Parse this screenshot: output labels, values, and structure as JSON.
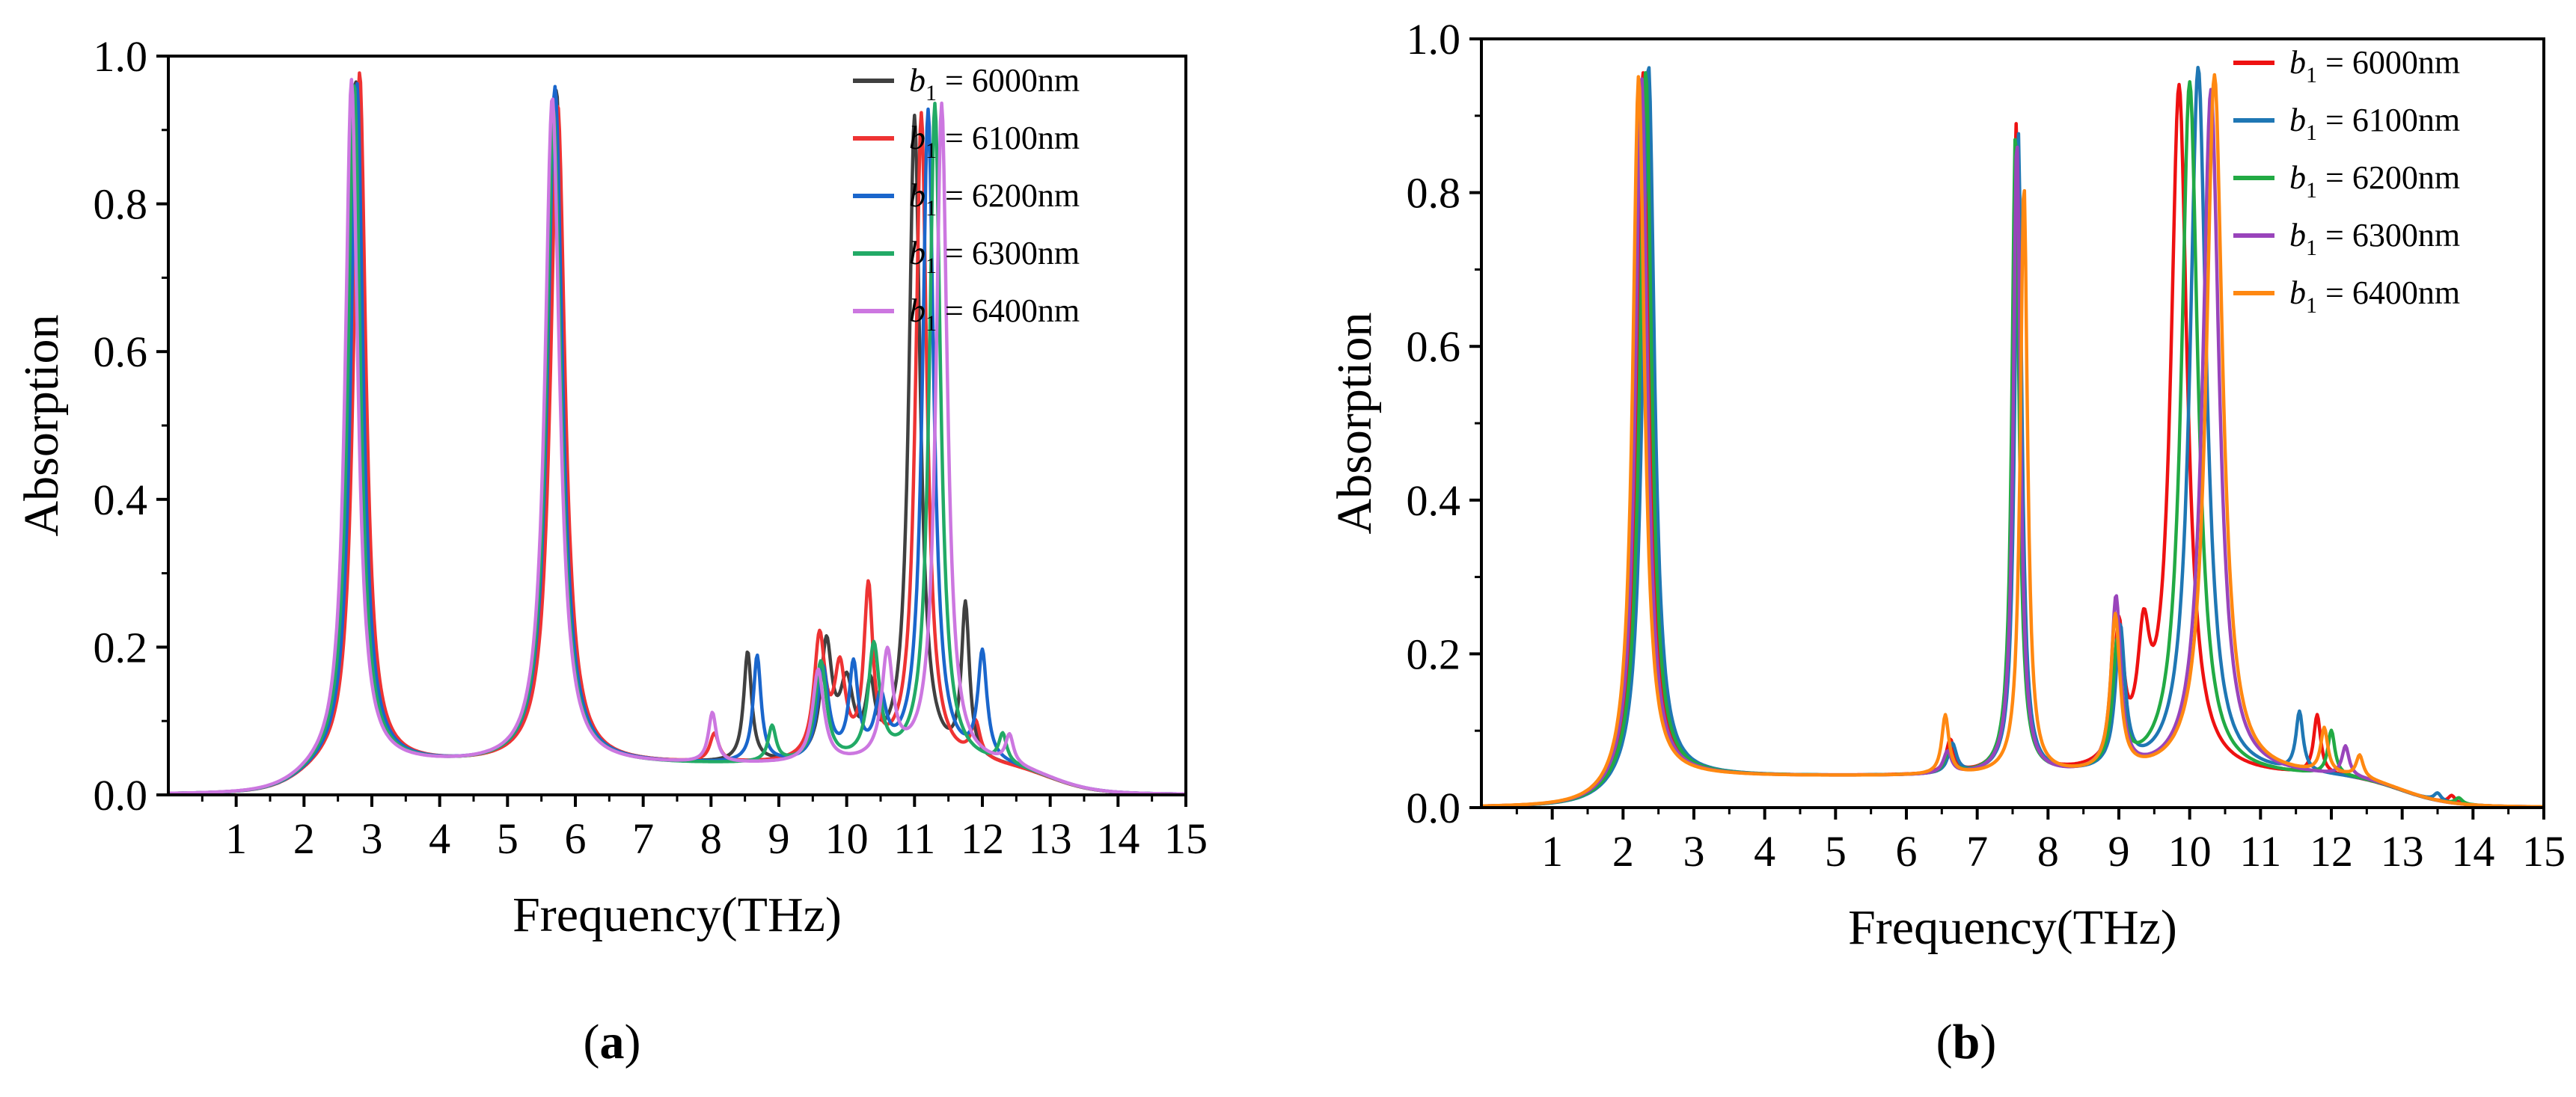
{
  "chart_data": [
    {
      "type": "line",
      "panel_label": "a",
      "xlabel": "Frequency(THz)",
      "ylabel": "Absorption",
      "xlim": [
        0,
        15
      ],
      "ylim": [
        0,
        1.0
      ],
      "x_ticks": [
        1,
        2,
        3,
        4,
        5,
        6,
        7,
        8,
        9,
        10,
        11,
        12,
        13,
        14,
        15
      ],
      "y_ticks": [
        0.0,
        0.2,
        0.4,
        0.6,
        0.8,
        1.0
      ],
      "y_tick_labels": [
        "0.0",
        "0.2",
        "0.4",
        "0.6",
        "0.8",
        "1.0"
      ],
      "legend_position": "top-right",
      "series": [
        {
          "name": "b1 = 6000nm",
          "symbol": "b",
          "subscript": "1",
          "value_text": " = 6000nm",
          "color": "#404040",
          "peaks": [
            {
              "f": 2.76,
              "a": 0.965,
              "w": 0.11
            },
            {
              "f": 5.72,
              "a": 0.95,
              "w": 0.13
            },
            {
              "f": 8.54,
              "a": 0.155,
              "w": 0.07
            },
            {
              "f": 9.7,
              "a": 0.16,
              "w": 0.1
            },
            {
              "f": 10.0,
              "a": 0.1,
              "w": 0.12
            },
            {
              "f": 10.35,
              "a": 0.09,
              "w": 0.08
            },
            {
              "f": 11.0,
              "a": 0.91,
              "w": 0.1
            },
            {
              "f": 11.75,
              "a": 0.215,
              "w": 0.07
            }
          ]
        },
        {
          "name": "b1 = 6100nm",
          "symbol": "b",
          "subscript": "1",
          "value_text": " = 6100nm",
          "color": "#ee3333",
          "peaks": [
            {
              "f": 2.82,
              "a": 0.975,
              "w": 0.11
            },
            {
              "f": 5.74,
              "a": 0.93,
              "w": 0.13
            },
            {
              "f": 8.05,
              "a": 0.04,
              "w": 0.08
            },
            {
              "f": 9.6,
              "a": 0.17,
              "w": 0.1
            },
            {
              "f": 9.9,
              "a": 0.12,
              "w": 0.1
            },
            {
              "f": 10.32,
              "a": 0.235,
              "w": 0.08
            },
            {
              "f": 11.1,
              "a": 0.915,
              "w": 0.1
            },
            {
              "f": 11.9,
              "a": 0.05,
              "w": 0.08
            }
          ]
        },
        {
          "name": "b1 = 6200nm",
          "symbol": "b",
          "subscript": "1",
          "value_text": " = 6200nm",
          "color": "#1a66cc",
          "peaks": [
            {
              "f": 2.78,
              "a": 0.96,
              "w": 0.11
            },
            {
              "f": 5.7,
              "a": 0.955,
              "w": 0.13
            },
            {
              "f": 8.68,
              "a": 0.15,
              "w": 0.07
            },
            {
              "f": 9.65,
              "a": 0.13,
              "w": 0.1
            },
            {
              "f": 10.1,
              "a": 0.13,
              "w": 0.08
            },
            {
              "f": 10.5,
              "a": 0.08,
              "w": 0.1
            },
            {
              "f": 11.2,
              "a": 0.92,
              "w": 0.1
            },
            {
              "f": 12.0,
              "a": 0.15,
              "w": 0.08
            }
          ]
        },
        {
          "name": "b1 = 6300nm",
          "symbol": "b",
          "subscript": "1",
          "value_text": " = 6300nm",
          "color": "#22aa66",
          "peaks": [
            {
              "f": 2.74,
              "a": 0.96,
              "w": 0.11
            },
            {
              "f": 5.68,
              "a": 0.92,
              "w": 0.13
            },
            {
              "f": 8.9,
              "a": 0.05,
              "w": 0.07
            },
            {
              "f": 9.62,
              "a": 0.14,
              "w": 0.1
            },
            {
              "f": 10.4,
              "a": 0.16,
              "w": 0.1
            },
            {
              "f": 11.3,
              "a": 0.93,
              "w": 0.1
            },
            {
              "f": 12.3,
              "a": 0.04,
              "w": 0.07
            }
          ]
        },
        {
          "name": "b1 = 6400nm",
          "symbol": "b",
          "subscript": "1",
          "value_text": " = 6400nm",
          "color": "#cc77e0",
          "peaks": [
            {
              "f": 2.7,
              "a": 0.965,
              "w": 0.11
            },
            {
              "f": 5.66,
              "a": 0.94,
              "w": 0.13
            },
            {
              "f": 8.02,
              "a": 0.07,
              "w": 0.07
            },
            {
              "f": 9.58,
              "a": 0.13,
              "w": 0.1
            },
            {
              "f": 10.6,
              "a": 0.15,
              "w": 0.1
            },
            {
              "f": 11.4,
              "a": 0.93,
              "w": 0.1
            },
            {
              "f": 12.4,
              "a": 0.04,
              "w": 0.07
            }
          ]
        }
      ]
    },
    {
      "type": "line",
      "panel_label": "b",
      "xlabel": "Frequency(THz)",
      "ylabel": "Absorption",
      "xlim": [
        0,
        15
      ],
      "ylim": [
        0,
        1.0
      ],
      "x_ticks": [
        1,
        2,
        3,
        4,
        5,
        6,
        7,
        8,
        9,
        10,
        11,
        12,
        13,
        14,
        15
      ],
      "y_ticks": [
        0.0,
        0.2,
        0.4,
        0.6,
        0.8,
        1.0
      ],
      "y_tick_labels": [
        "0.0",
        "0.2",
        "0.4",
        "0.6",
        "0.8",
        "1.0"
      ],
      "legend_position": "top-right",
      "series": [
        {
          "name": "b1 = 6000nm",
          "symbol": "b",
          "subscript": "1",
          "value_text": " = 6000nm",
          "color": "#ee1111",
          "peaks": [
            {
              "f": 2.28,
              "a": 0.955,
              "w": 0.1
            },
            {
              "f": 6.62,
              "a": 0.045,
              "w": 0.07
            },
            {
              "f": 7.55,
              "a": 0.88,
              "w": 0.06
            },
            {
              "f": 9.0,
              "a": 0.18,
              "w": 0.08
            },
            {
              "f": 9.35,
              "a": 0.15,
              "w": 0.1
            },
            {
              "f": 9.85,
              "a": 0.93,
              "w": 0.14
            },
            {
              "f": 11.8,
              "a": 0.08,
              "w": 0.06
            },
            {
              "f": 13.7,
              "a": 0.01,
              "w": 0.06
            }
          ]
        },
        {
          "name": "b1 = 6100nm",
          "symbol": "b",
          "subscript": "1",
          "value_text": " = 6100nm",
          "color": "#1f77b4",
          "peaks": [
            {
              "f": 2.36,
              "a": 0.965,
              "w": 0.1
            },
            {
              "f": 6.65,
              "a": 0.04,
              "w": 0.07
            },
            {
              "f": 7.58,
              "a": 0.87,
              "w": 0.06
            },
            {
              "f": 9.02,
              "a": 0.19,
              "w": 0.08
            },
            {
              "f": 10.12,
              "a": 0.96,
              "w": 0.14
            },
            {
              "f": 11.55,
              "a": 0.08,
              "w": 0.06
            },
            {
              "f": 13.5,
              "a": 0.01,
              "w": 0.06
            }
          ]
        },
        {
          "name": "b1 = 6200nm",
          "symbol": "b",
          "subscript": "1",
          "value_text": " = 6200nm",
          "color": "#22aa44",
          "peaks": [
            {
              "f": 2.32,
              "a": 0.955,
              "w": 0.1
            },
            {
              "f": 6.6,
              "a": 0.03,
              "w": 0.07
            },
            {
              "f": 7.54,
              "a": 0.87,
              "w": 0.06
            },
            {
              "f": 8.98,
              "a": 0.17,
              "w": 0.08
            },
            {
              "f": 10.0,
              "a": 0.94,
              "w": 0.14
            },
            {
              "f": 12.0,
              "a": 0.06,
              "w": 0.06
            },
            {
              "f": 13.8,
              "a": 0.008,
              "w": 0.06
            }
          ]
        },
        {
          "name": "b1 = 6300nm",
          "symbol": "b",
          "subscript": "1",
          "value_text": " = 6300nm",
          "color": "#9944bb",
          "peaks": [
            {
              "f": 2.26,
              "a": 0.95,
              "w": 0.1
            },
            {
              "f": 6.58,
              "a": 0.03,
              "w": 0.07
            },
            {
              "f": 7.56,
              "a": 0.86,
              "w": 0.06
            },
            {
              "f": 8.96,
              "a": 0.235,
              "w": 0.08
            },
            {
              "f": 10.3,
              "a": 0.93,
              "w": 0.14
            },
            {
              "f": 12.2,
              "a": 0.04,
              "w": 0.06
            }
          ]
        },
        {
          "name": "b1 = 6400nm",
          "symbol": "b",
          "subscript": "1",
          "value_text": " = 6400nm",
          "color": "#ff8811",
          "peaks": [
            {
              "f": 2.22,
              "a": 0.95,
              "w": 0.1
            },
            {
              "f": 6.55,
              "a": 0.08,
              "w": 0.06
            },
            {
              "f": 7.66,
              "a": 0.8,
              "w": 0.06
            },
            {
              "f": 8.95,
              "a": 0.21,
              "w": 0.08
            },
            {
              "f": 10.35,
              "a": 0.95,
              "w": 0.14
            },
            {
              "f": 11.9,
              "a": 0.06,
              "w": 0.06
            },
            {
              "f": 12.4,
              "a": 0.03,
              "w": 0.06
            }
          ]
        }
      ]
    }
  ]
}
